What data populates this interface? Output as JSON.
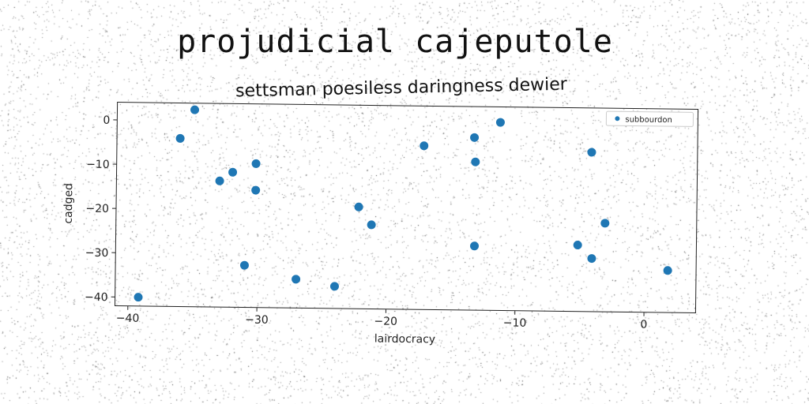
{
  "title": "projudicial cajeputole",
  "chart_data": {
    "type": "scatter",
    "title": "settsman poesiless daringness dewier",
    "xlabel": "lairdocracy",
    "ylabel": "cadged",
    "xlim": [
      -41,
      4
    ],
    "ylim": [
      -42,
      4
    ],
    "xticks": [
      -40,
      -30,
      -20,
      -10,
      0
    ],
    "yticks": [
      0,
      -10,
      -20,
      -30,
      -40
    ],
    "xtick_labels": [
      "−40",
      "−30",
      "−20",
      "−10",
      "0"
    ],
    "ytick_labels": [
      "0",
      "−10",
      "−20",
      "−30",
      "−40"
    ],
    "grid": false,
    "legend_position": "top-right",
    "series": [
      {
        "name": "subbourdon",
        "color": "#1f77b4",
        "points": [
          {
            "x": -39.2,
            "y": -40.0
          },
          {
            "x": -36.1,
            "y": -4.0
          },
          {
            "x": -35.0,
            "y": 2.5
          },
          {
            "x": -33.0,
            "y": -13.5
          },
          {
            "x": -32.0,
            "y": -11.5
          },
          {
            "x": -31.0,
            "y": -32.5
          },
          {
            "x": -30.2,
            "y": -9.5
          },
          {
            "x": -30.2,
            "y": -15.5
          },
          {
            "x": -27.0,
            "y": -35.5
          },
          {
            "x": -24.0,
            "y": -37.0
          },
          {
            "x": -22.2,
            "y": -19.0
          },
          {
            "x": -21.2,
            "y": -23.0
          },
          {
            "x": -17.2,
            "y": -5.0
          },
          {
            "x": -13.3,
            "y": -3.0
          },
          {
            "x": -13.2,
            "y": -8.5
          },
          {
            "x": -13.2,
            "y": -27.5
          },
          {
            "x": -11.3,
            "y": 0.5
          },
          {
            "x": -5.2,
            "y": -27.0
          },
          {
            "x": -4.2,
            "y": -6.0
          },
          {
            "x": -4.1,
            "y": -30.0
          },
          {
            "x": -3.1,
            "y": -22.0
          },
          {
            "x": 1.8,
            "y": -32.5
          }
        ]
      }
    ]
  }
}
